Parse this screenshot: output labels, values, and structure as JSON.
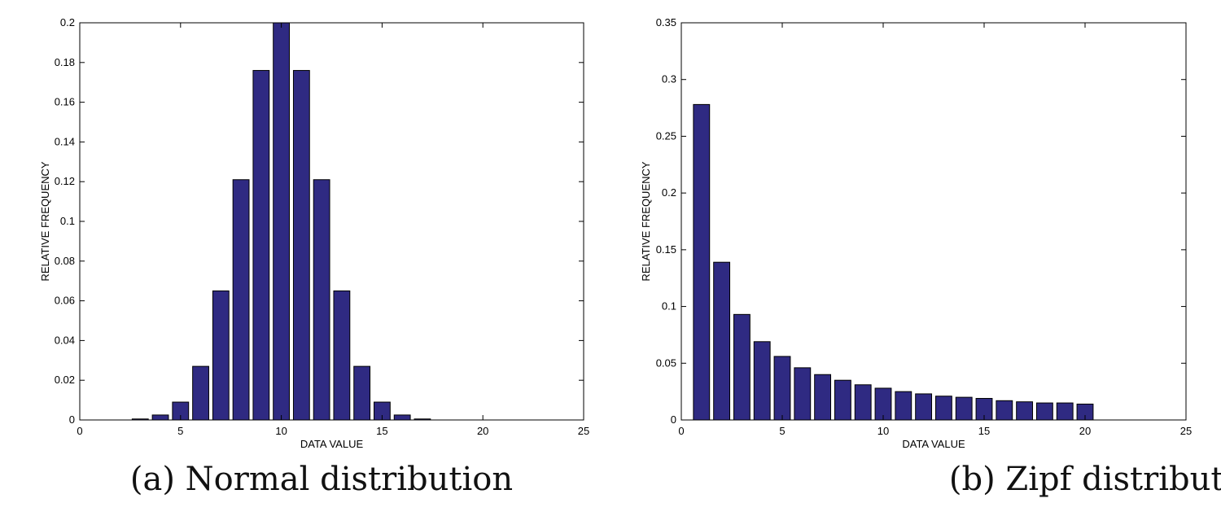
{
  "chart_data": [
    {
      "type": "bar",
      "title": "",
      "caption": "(a) Normal distribution",
      "xlabel": "DATA VALUE",
      "ylabel": "RELATIVE FREQUENCY",
      "xlim": [
        0,
        25
      ],
      "ylim": [
        0,
        0.2
      ],
      "xticks": [
        0,
        5,
        10,
        15,
        20,
        25
      ],
      "yticks": [
        0,
        0.02,
        0.04,
        0.06,
        0.08,
        0.1,
        0.12,
        0.14,
        0.16,
        0.18,
        0.2
      ],
      "grid": false,
      "bar_color": "#2f2a82",
      "x": [
        3,
        4,
        5,
        6,
        7,
        8,
        9,
        10,
        11,
        12,
        13,
        14,
        15,
        16,
        17
      ],
      "values": [
        0.0005,
        0.0025,
        0.009,
        0.027,
        0.065,
        0.121,
        0.176,
        0.2,
        0.176,
        0.121,
        0.065,
        0.027,
        0.009,
        0.0025,
        0.0005
      ]
    },
    {
      "type": "bar",
      "title": "",
      "caption": "(b) Zipf distribution",
      "xlabel": "DATA VALUE",
      "ylabel": "RELATIVE FREQUENCY",
      "xlim": [
        0,
        25
      ],
      "ylim": [
        0,
        0.35
      ],
      "xticks": [
        0,
        5,
        10,
        15,
        20,
        25
      ],
      "yticks": [
        0,
        0.05,
        0.1,
        0.15,
        0.2,
        0.25,
        0.3,
        0.35
      ],
      "grid": false,
      "bar_color": "#2f2a82",
      "x": [
        1,
        2,
        3,
        4,
        5,
        6,
        7,
        8,
        9,
        10,
        11,
        12,
        13,
        14,
        15,
        16,
        17,
        18,
        19,
        20
      ],
      "values": [
        0.278,
        0.139,
        0.093,
        0.069,
        0.056,
        0.046,
        0.04,
        0.035,
        0.031,
        0.028,
        0.025,
        0.023,
        0.021,
        0.02,
        0.019,
        0.017,
        0.016,
        0.015,
        0.015,
        0.014
      ]
    }
  ]
}
